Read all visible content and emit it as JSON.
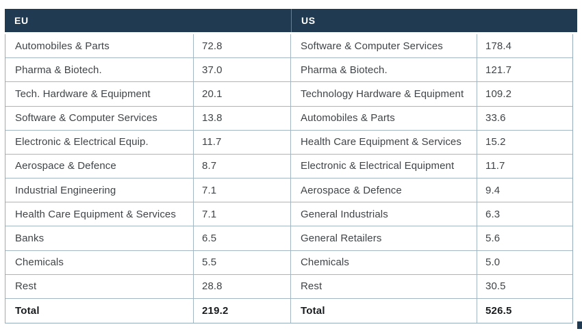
{
  "colors": {
    "header_bg": "#1f3a51",
    "border": "#a3b6c4",
    "body_text": "#3f4448"
  },
  "table": {
    "sections": [
      {
        "header": "EU",
        "rows": [
          {
            "label": "Automobiles & Parts",
            "value": "72.8"
          },
          {
            "label": "Pharma & Biotech.",
            "value": "37.0"
          },
          {
            "label": "Tech. Hardware & Equipment",
            "value": "20.1"
          },
          {
            "label": "Software & Computer Services",
            "value": "13.8"
          },
          {
            "label": "Electronic & Electrical Equip.",
            "value": "11.7"
          },
          {
            "label": "Aerospace & Defence",
            "value": "8.7"
          },
          {
            "label": "Industrial Engineering",
            "value": "7.1"
          },
          {
            "label": "Health Care Equipment & Services",
            "value": "7.1"
          },
          {
            "label": "Banks",
            "value": "6.5"
          },
          {
            "label": "Chemicals",
            "value": "5.5"
          },
          {
            "label": "Rest",
            "value": "28.8"
          }
        ],
        "total": {
          "label": "Total",
          "value": "219.2"
        }
      },
      {
        "header": "US",
        "rows": [
          {
            "label": "Software & Computer Services",
            "value": "178.4"
          },
          {
            "label": "Pharma & Biotech.",
            "value": "121.7"
          },
          {
            "label": "Technology Hardware & Equipment",
            "value": "109.2"
          },
          {
            "label": "Automobiles & Parts",
            "value": "33.6"
          },
          {
            "label": "Health Care Equipment & Services",
            "value": "15.2"
          },
          {
            "label": "Electronic & Electrical Equipment",
            "value": "11.7"
          },
          {
            "label": "Aerospace & Defence",
            "value": "9.4"
          },
          {
            "label": "General Industrials",
            "value": "6.3"
          },
          {
            "label": "General Retailers",
            "value": "5.6"
          },
          {
            "label": "Chemicals",
            "value": "5.0"
          },
          {
            "label": "Rest",
            "value": "30.5"
          }
        ],
        "total": {
          "label": "Total",
          "value": "526.5"
        }
      }
    ]
  }
}
